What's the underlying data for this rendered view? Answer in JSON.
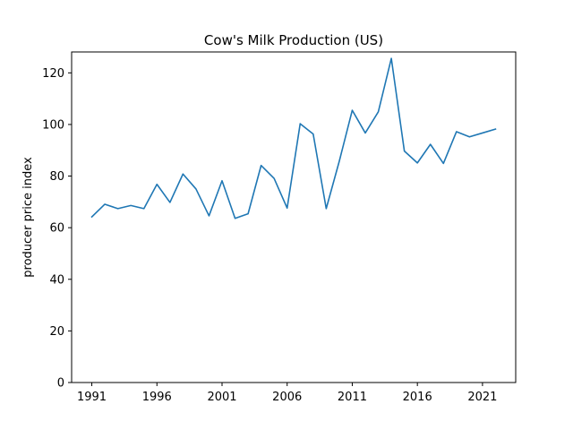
{
  "chart_data": {
    "type": "line",
    "title": "Cow's Milk Production (US)",
    "xlabel": "",
    "ylabel": "producer price index",
    "xlim": [
      1989.45,
      2023.55
    ],
    "ylim": [
      0,
      128.1
    ],
    "xticks": [
      1991,
      1996,
      2001,
      2006,
      2011,
      2016,
      2021
    ],
    "yticks": [
      0,
      20,
      40,
      60,
      80,
      100,
      120
    ],
    "grid": false,
    "line_color": "#1f77b4",
    "series": [
      {
        "x": [
          1991,
          1992,
          1993,
          1994,
          1995,
          1996,
          1997,
          1998,
          1999,
          2000,
          2001,
          2002,
          2003,
          2004,
          2005,
          2006,
          2007,
          2008,
          2009,
          2010,
          2011,
          2012,
          2013,
          2014,
          2015,
          2016,
          2017,
          2018,
          2019,
          2020,
          2021,
          2022
        ],
        "y": [
          64.2,
          69.1,
          67.4,
          68.6,
          67.4,
          76.8,
          69.8,
          80.8,
          75.0,
          64.6,
          78.2,
          63.6,
          65.4,
          84.1,
          79.1,
          67.6,
          100.3,
          96.3,
          67.4,
          85.7,
          105.5,
          96.7,
          104.9,
          125.6,
          89.7,
          85.1,
          92.3,
          84.9,
          97.2,
          95.2,
          96.7,
          98.2
        ]
      }
    ]
  }
}
